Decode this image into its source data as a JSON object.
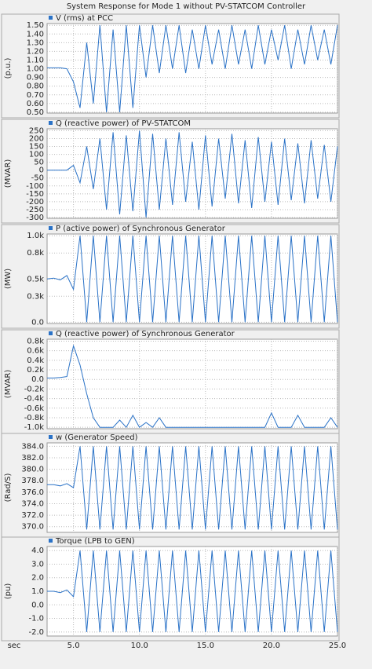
{
  "title": "System Response for Mode 1 without PV-STATCOM Controller",
  "chart_data": [
    {
      "type": "line",
      "ylabel": "(p.u.)",
      "xlim": [
        3,
        25
      ],
      "ylim": [
        0.49,
        1.52
      ],
      "yticks": [
        {
          "value": 0.5,
          "label": "0.50"
        },
        {
          "value": 0.6,
          "label": "0.60"
        },
        {
          "value": 0.7,
          "label": "0.70"
        },
        {
          "value": 0.8,
          "label": "0.80"
        },
        {
          "value": 0.9,
          "label": "0.90"
        },
        {
          "value": 1.0,
          "label": "1.00"
        },
        {
          "value": 1.1,
          "label": "1.10"
        },
        {
          "value": 1.2,
          "label": "1.20"
        },
        {
          "value": 1.3,
          "label": "1.30"
        },
        {
          "value": 1.4,
          "label": "1.40"
        },
        {
          "value": 1.5,
          "label": "1.50"
        }
      ],
      "x": [
        3,
        3.5,
        4,
        4.5,
        5,
        5.5,
        6,
        6.5,
        7,
        7.5,
        8,
        8.5,
        9,
        9.5,
        10,
        10.5,
        11,
        11.5,
        12,
        12.5,
        13,
        13.5,
        14,
        14.5,
        15,
        15.5,
        16,
        16.5,
        17,
        17.5,
        18,
        18.5,
        19,
        19.5,
        20,
        20.5,
        21,
        21.5,
        22,
        22.5,
        23,
        23.5,
        24,
        24.5,
        25
      ],
      "series": [
        {
          "name": "V (rms) at PCC",
          "color": "#2a72c7",
          "values": [
            1.01,
            1.01,
            1.01,
            1.0,
            0.85,
            0.55,
            1.3,
            0.6,
            1.5,
            0.5,
            1.45,
            0.5,
            1.5,
            0.55,
            1.5,
            0.9,
            1.5,
            0.95,
            1.5,
            1.0,
            1.5,
            0.95,
            1.45,
            1.0,
            1.5,
            1.05,
            1.45,
            1.0,
            1.5,
            1.05,
            1.45,
            1.0,
            1.5,
            1.05,
            1.45,
            1.1,
            1.5,
            1.0,
            1.45,
            1.05,
            1.5,
            1.1,
            1.45,
            1.05,
            1.5
          ]
        }
      ]
    },
    {
      "type": "line",
      "ylabel": "(MVAR)",
      "xlim": [
        3,
        25
      ],
      "ylim": [
        -305,
        262
      ],
      "yticks": [
        -300,
        -250,
        -200,
        -150,
        -100,
        -50,
        0,
        50,
        100,
        150,
        200,
        250
      ],
      "x": [
        3,
        3.5,
        4,
        4.5,
        5,
        5.5,
        6,
        6.5,
        7,
        7.5,
        8,
        8.5,
        9,
        9.5,
        10,
        10.5,
        11,
        11.5,
        12,
        12.5,
        13,
        13.5,
        14,
        14.5,
        15,
        15.5,
        16,
        16.5,
        17,
        17.5,
        18,
        18.5,
        19,
        19.5,
        20,
        20.5,
        21,
        21.5,
        22,
        22.5,
        23,
        23.5,
        24,
        24.5,
        25
      ],
      "series": [
        {
          "name": "Q (reactive power) of PV-STATCOM",
          "color": "#2a72c7",
          "values": [
            0,
            0,
            0,
            0,
            30,
            -80,
            150,
            -120,
            200,
            -250,
            240,
            -280,
            220,
            -260,
            250,
            -300,
            230,
            -250,
            200,
            -220,
            240,
            -200,
            180,
            -250,
            220,
            -230,
            200,
            -180,
            230,
            -210,
            190,
            -240,
            210,
            -200,
            180,
            -220,
            200,
            -190,
            170,
            -210,
            190,
            -180,
            160,
            -200,
            150
          ]
        }
      ]
    },
    {
      "type": "line",
      "ylabel": "(MW)",
      "xlim": [
        3,
        25
      ],
      "ylim": [
        -15,
        1020
      ],
      "yticks": [
        {
          "value": 0,
          "label": "0.0"
        },
        {
          "value": 300,
          "label": "0.3k"
        },
        {
          "value": 500,
          "label": "0.5k"
        },
        {
          "value": 800,
          "label": "0.8k"
        },
        {
          "value": 1000,
          "label": "1.0k"
        }
      ],
      "x": [
        3,
        3.5,
        4,
        4.5,
        5,
        5.5,
        6,
        6.5,
        7,
        7.5,
        8,
        8.5,
        9,
        9.5,
        10,
        10.5,
        11,
        11.5,
        12,
        12.5,
        13,
        13.5,
        14,
        14.5,
        15,
        15.5,
        16,
        16.5,
        17,
        17.5,
        18,
        18.5,
        19,
        19.5,
        20,
        20.5,
        21,
        21.5,
        22,
        22.5,
        23,
        23.5,
        24,
        24.5,
        25
      ],
      "series": [
        {
          "name": "P (active power) of Synchronous Generator",
          "color": "#2a72c7",
          "values": [
            500,
            510,
            490,
            540,
            380,
            1000,
            0,
            1000,
            0,
            1000,
            0,
            1000,
            0,
            1000,
            0,
            1000,
            0,
            1000,
            0,
            1000,
            0,
            1000,
            0,
            1000,
            0,
            1000,
            0,
            1000,
            0,
            1000,
            0,
            1000,
            0,
            1000,
            0,
            1000,
            0,
            1000,
            0,
            1000,
            0,
            1000,
            0,
            1000,
            0
          ]
        }
      ]
    },
    {
      "type": "line",
      "ylabel": "(MVAR)",
      "xlim": [
        3,
        25
      ],
      "ylim": [
        -1030,
        840
      ],
      "yticks": [
        {
          "value": 800,
          "label": "0.8k"
        },
        {
          "value": 600,
          "label": "0.6k"
        },
        {
          "value": 400,
          "label": "0.4k"
        },
        {
          "value": 200,
          "label": "0.2k"
        },
        {
          "value": 0,
          "label": "0.0"
        },
        {
          "value": -200,
          "label": "-0.2k"
        },
        {
          "value": -400,
          "label": "-0.4k"
        },
        {
          "value": -600,
          "label": "-0.6k"
        },
        {
          "value": -800,
          "label": "-0.8k"
        },
        {
          "value": -1000,
          "label": "-1.0k"
        }
      ],
      "x": [
        3,
        3.5,
        4,
        4.5,
        5,
        5.5,
        6,
        6.5,
        7,
        7.5,
        8,
        8.5,
        9,
        9.5,
        10,
        10.5,
        11,
        11.5,
        12,
        12.5,
        13,
        13.5,
        14,
        14.5,
        15,
        15.5,
        16,
        16.5,
        17,
        17.5,
        18,
        18.5,
        19,
        19.5,
        20,
        20.5,
        21,
        21.5,
        22,
        22.5,
        23,
        23.5,
        24,
        24.5,
        25
      ],
      "series": [
        {
          "name": "Q (reactive power) of Synchronous Generator",
          "color": "#2a72c7",
          "values": [
            30,
            30,
            40,
            60,
            700,
            300,
            -300,
            -800,
            -1000,
            -1000,
            -1000,
            -850,
            -1000,
            -750,
            -1000,
            -900,
            -1000,
            -800,
            -1000,
            -1000,
            -1000,
            -1000,
            -1000,
            -1000,
            -1000,
            -1000,
            -1000,
            -1000,
            -1000,
            -1000,
            -1000,
            -1000,
            -1000,
            -1000,
            -700,
            -1000,
            -1000,
            -1000,
            -750,
            -1000,
            -1000,
            -1000,
            -1000,
            -800,
            -1000
          ]
        }
      ]
    },
    {
      "type": "line",
      "ylabel": "(Rad/S)",
      "xlim": [
        3,
        25
      ],
      "ylim": [
        369,
        384.6
      ],
      "yticks": [
        {
          "value": 370,
          "label": "370.0"
        },
        {
          "value": 372,
          "label": "372.0"
        },
        {
          "value": 374,
          "label": "374.0"
        },
        {
          "value": 376,
          "label": "376.0"
        },
        {
          "value": 378,
          "label": "378.0"
        },
        {
          "value": 380,
          "label": "380.0"
        },
        {
          "value": 382,
          "label": "382.0"
        },
        {
          "value": 384,
          "label": "384.0"
        }
      ],
      "x": [
        3,
        3.5,
        4,
        4.5,
        5,
        5.5,
        6,
        6.5,
        7,
        7.5,
        8,
        8.5,
        9,
        9.5,
        10,
        10.5,
        11,
        11.5,
        12,
        12.5,
        13,
        13.5,
        14,
        14.5,
        15,
        15.5,
        16,
        16.5,
        17,
        17.5,
        18,
        18.5,
        19,
        19.5,
        20,
        20.5,
        21,
        21.5,
        22,
        22.5,
        23,
        23.5,
        24,
        24.5,
        25
      ],
      "series": [
        {
          "name": "w (Generator Speed)",
          "color": "#2a72c7",
          "values": [
            377.3,
            377.3,
            377.1,
            377.5,
            376.8,
            384,
            369.5,
            384,
            369.5,
            384,
            369.5,
            384,
            369.5,
            384,
            369.5,
            384,
            369.5,
            384,
            369.5,
            384,
            369.5,
            384,
            369.5,
            384,
            369.5,
            384,
            369.5,
            384,
            369.5,
            384,
            369.5,
            384,
            369.5,
            384,
            369.5,
            384,
            369.5,
            384,
            369.5,
            384,
            369.5,
            384,
            369.5,
            384,
            369.5
          ]
        }
      ]
    },
    {
      "type": "line",
      "ylabel": "(pu)",
      "xlabel": "sec",
      "xlim": [
        3,
        25
      ],
      "ylim": [
        -2.3,
        4.3
      ],
      "yticks": [
        {
          "value": -2,
          "label": "-2.0"
        },
        {
          "value": -1,
          "label": "-1.0"
        },
        {
          "value": 0,
          "label": "0.0"
        },
        {
          "value": 1,
          "label": "1.0"
        },
        {
          "value": 2,
          "label": "2.0"
        },
        {
          "value": 3,
          "label": "3.0"
        },
        {
          "value": 4,
          "label": "4.0"
        }
      ],
      "xticks": [
        {
          "value": 5,
          "label": "5.0"
        },
        {
          "value": 10,
          "label": "10.0"
        },
        {
          "value": 15,
          "label": "15.0"
        },
        {
          "value": 20,
          "label": "20.0"
        },
        {
          "value": 25,
          "label": "25.0"
        }
      ],
      "x": [
        3,
        3.5,
        4,
        4.5,
        5,
        5.5,
        6,
        6.5,
        7,
        7.5,
        8,
        8.5,
        9,
        9.5,
        10,
        10.5,
        11,
        11.5,
        12,
        12.5,
        13,
        13.5,
        14,
        14.5,
        15,
        15.5,
        16,
        16.5,
        17,
        17.5,
        18,
        18.5,
        19,
        19.5,
        20,
        20.5,
        21,
        21.5,
        22,
        22.5,
        23,
        23.5,
        24,
        24.5,
        25
      ],
      "series": [
        {
          "name": "Torque (LPB to GEN)",
          "color": "#2a72c7",
          "values": [
            1.0,
            1.0,
            0.9,
            1.1,
            0.6,
            4.0,
            -2.0,
            4.0,
            -2.0,
            4.0,
            -2.0,
            4.0,
            -2.0,
            4.0,
            -2.0,
            4.0,
            -2.0,
            4.0,
            -2.0,
            4.0,
            -2.0,
            4.0,
            -2.0,
            4.0,
            -2.0,
            4.0,
            -2.0,
            4.0,
            -2.0,
            4.0,
            -2.0,
            4.0,
            -2.0,
            4.0,
            -2.0,
            4.0,
            -2.0,
            4.0,
            -2.0,
            4.0,
            -2.0,
            4.0,
            -2.0,
            4.0,
            -2.0
          ]
        }
      ]
    }
  ]
}
